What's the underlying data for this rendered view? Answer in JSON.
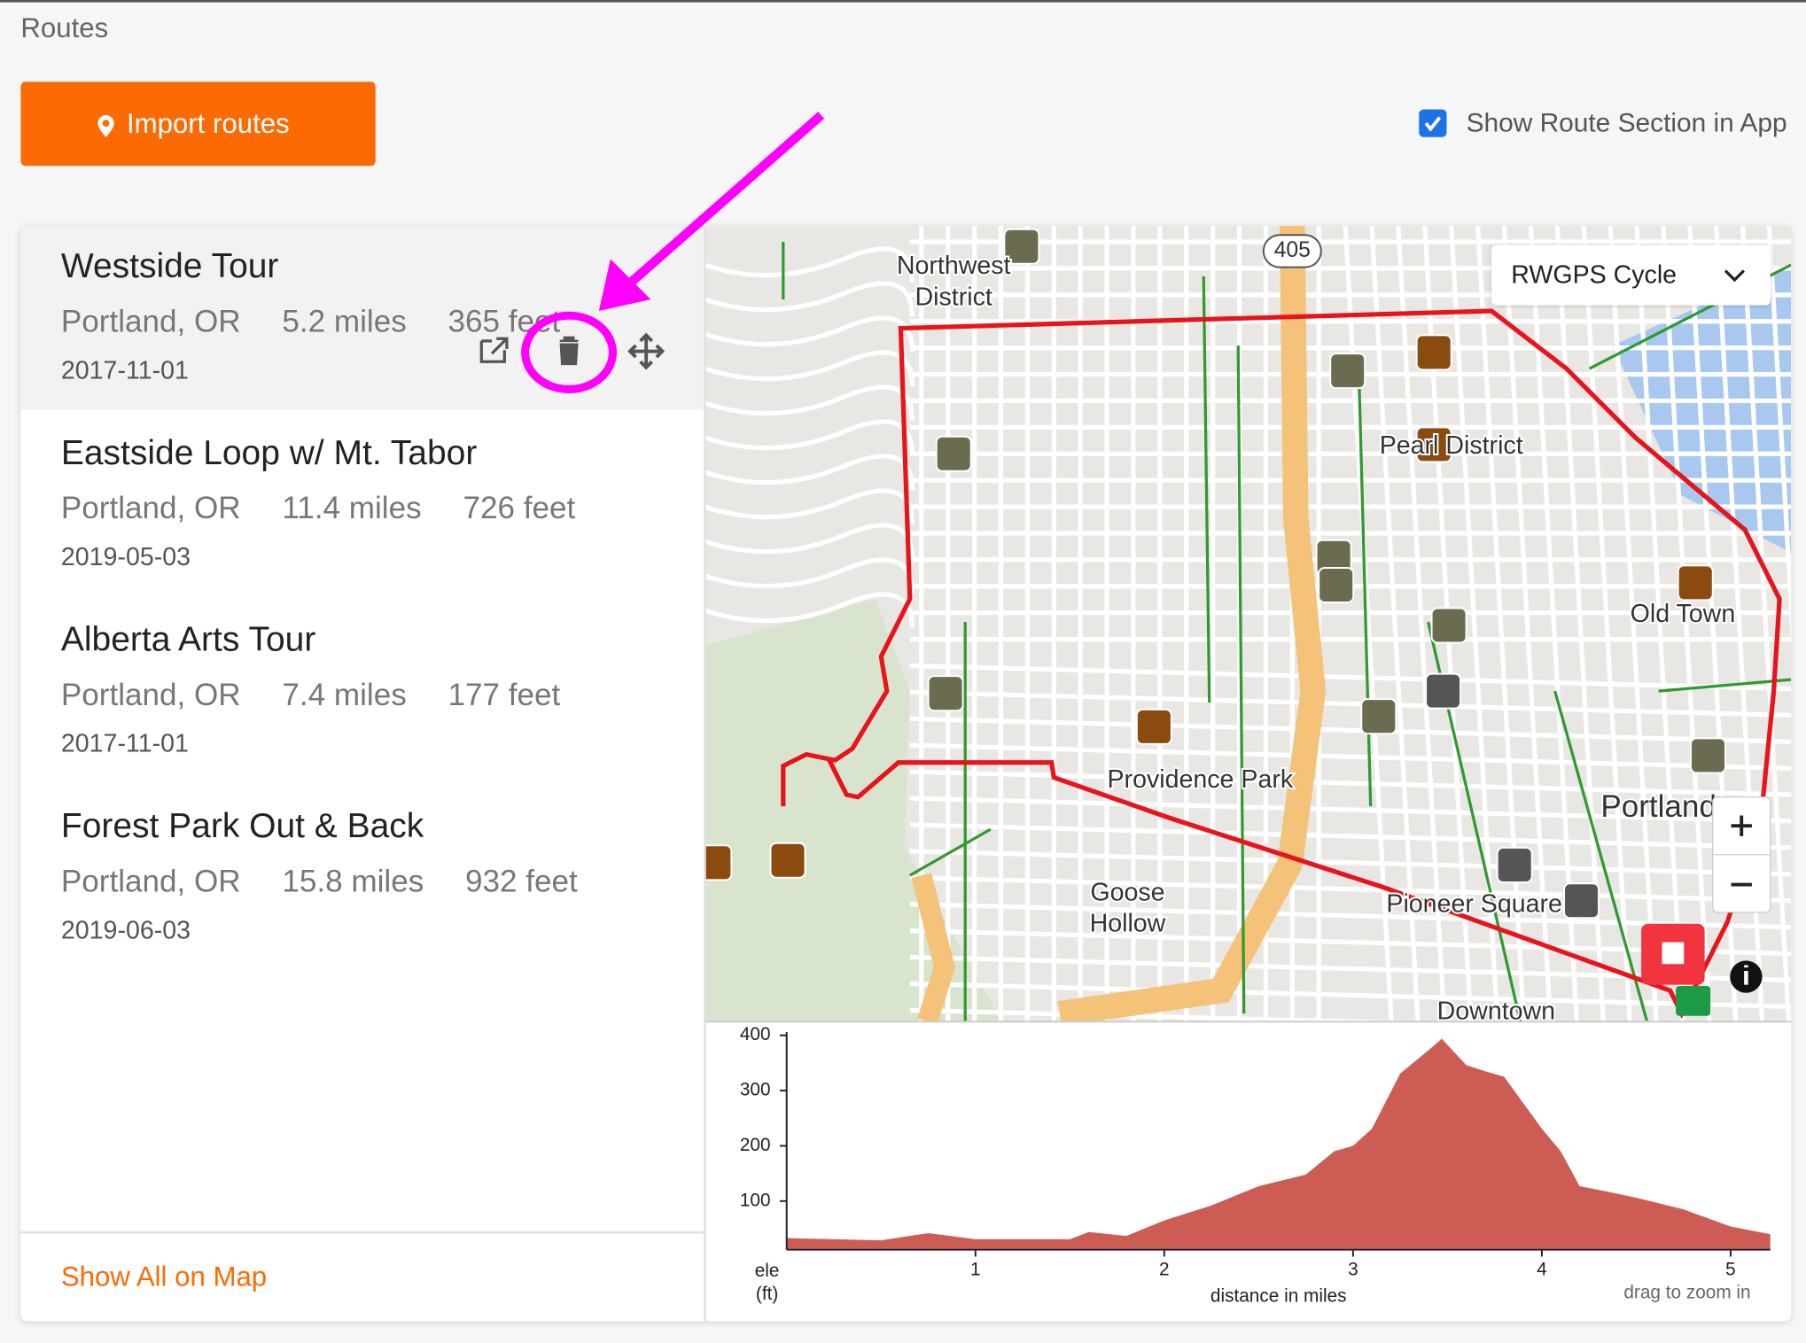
{
  "header": {
    "title": "Routes",
    "import_button": "Import routes",
    "show_in_app": "Show Route Section in App",
    "show_in_app_checked": true
  },
  "routes": [
    {
      "name": "Westside Tour",
      "location": "Portland, OR",
      "distance": "5.2 miles",
      "elevation_gain": "365 feet",
      "date": "2017-11-01"
    },
    {
      "name": "Eastside Loop w/ Mt. Tabor",
      "location": "Portland, OR",
      "distance": "11.4 miles",
      "elevation_gain": "726 feet",
      "date": "2019-05-03"
    },
    {
      "name": "Alberta Arts Tour",
      "location": "Portland, OR",
      "distance": "7.4 miles",
      "elevation_gain": "177 feet",
      "date": "2017-11-01"
    },
    {
      "name": "Forest Park Out & Back",
      "location": "Portland, OR",
      "distance": "15.8 miles",
      "elevation_gain": "932 feet",
      "date": "2019-06-03"
    }
  ],
  "show_all": "Show All on Map",
  "map": {
    "style": "RWGPS Cycle",
    "highway_shield": "405",
    "labels": [
      "Northwest",
      "District",
      "Pearl District",
      "Old Town",
      "Providence Park",
      "Goose",
      "Hollow",
      "Portland",
      "Pioneer Square",
      "Downtown"
    ]
  },
  "elevation_chart": {
    "y_label": [
      "ele",
      "(ft)"
    ],
    "x_label": "distance in miles",
    "hint": "drag to zoom in",
    "color": "#cd5c55",
    "xlim": [
      0,
      5.21
    ],
    "ylim": [
      12,
      406
    ],
    "xticks": [
      1,
      2,
      3,
      4,
      5
    ],
    "yticks": [
      100,
      200,
      300,
      400
    ],
    "x": [
      0,
      0.5,
      0.75,
      1.0,
      1.5,
      1.6,
      1.8,
      2.0,
      2.25,
      2.5,
      2.75,
      2.9,
      3.0,
      3.1,
      3.25,
      3.4,
      3.47,
      3.6,
      3.7,
      3.8,
      4.0,
      4.1,
      4.2,
      4.35,
      4.5,
      4.75,
      5.0,
      5.21
    ],
    "values": [
      33,
      29,
      42,
      31,
      31,
      44,
      37,
      65,
      92,
      127,
      148,
      190,
      200,
      231,
      331,
      373,
      394,
      346,
      335,
      325,
      231,
      190,
      127,
      117,
      106,
      85,
      54,
      40
    ]
  }
}
